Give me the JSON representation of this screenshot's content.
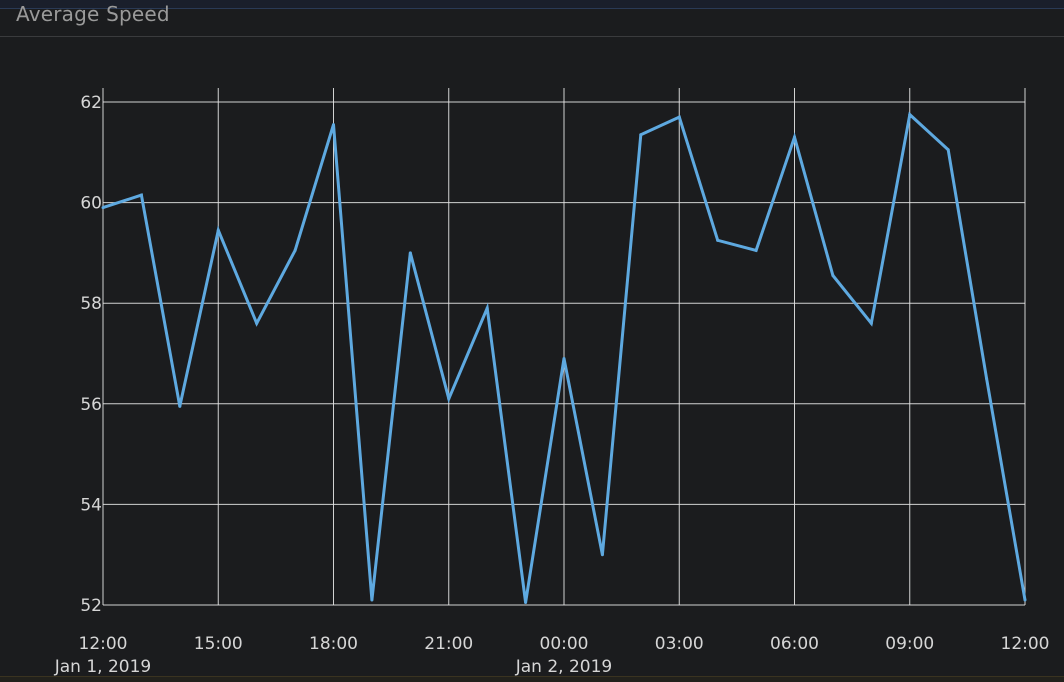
{
  "panel": {
    "title": "Average Speed"
  },
  "colors": {
    "background": "#1b1c1e",
    "grid": "#e6e6e6",
    "line": "#5ea9e0",
    "text": "#d6d6d6",
    "title": "#9a9a9a"
  },
  "chart_data": {
    "type": "line",
    "title": "",
    "xlabel": "",
    "ylabel": "",
    "grid": true,
    "legend": "none",
    "ylim": [
      52,
      62
    ],
    "xlim": [
      "2019-01-01 12:00",
      "2019-01-02 12:00"
    ],
    "y_ticks": [
      52,
      54,
      56,
      58,
      60,
      62
    ],
    "x_ticks": [
      {
        "at": "2019-01-01 12:00",
        "label": "12:00",
        "sublabel": "Jan 1, 2019"
      },
      {
        "at": "2019-01-01 15:00",
        "label": "15:00",
        "sublabel": ""
      },
      {
        "at": "2019-01-01 18:00",
        "label": "18:00",
        "sublabel": ""
      },
      {
        "at": "2019-01-01 21:00",
        "label": "21:00",
        "sublabel": ""
      },
      {
        "at": "2019-01-02 00:00",
        "label": "00:00",
        "sublabel": "Jan 2, 2019"
      },
      {
        "at": "2019-01-02 03:00",
        "label": "03:00",
        "sublabel": ""
      },
      {
        "at": "2019-01-02 06:00",
        "label": "06:00",
        "sublabel": ""
      },
      {
        "at": "2019-01-02 09:00",
        "label": "09:00",
        "sublabel": ""
      },
      {
        "at": "2019-01-02 12:00",
        "label": "12:00",
        "sublabel": ""
      }
    ],
    "series": [
      {
        "x": [
          "2019-01-01 12:00",
          "2019-01-01 13:00",
          "2019-01-01 14:00",
          "2019-01-01 15:00",
          "2019-01-01 16:00",
          "2019-01-01 17:00",
          "2019-01-01 18:00",
          "2019-01-01 19:00",
          "2019-01-01 20:00",
          "2019-01-01 21:00",
          "2019-01-01 22:00",
          "2019-01-01 23:00",
          "2019-01-02 00:00",
          "2019-01-02 01:00",
          "2019-01-02 02:00",
          "2019-01-02 03:00",
          "2019-01-02 04:00",
          "2019-01-02 05:00",
          "2019-01-02 06:00",
          "2019-01-02 07:00",
          "2019-01-02 08:00",
          "2019-01-02 09:00",
          "2019-01-02 10:00",
          "2019-01-02 11:00",
          "2019-01-02 12:00"
        ],
        "y": [
          59.9,
          60.15,
          55.95,
          59.45,
          57.6,
          59.05,
          61.55,
          52.1,
          59.0,
          56.1,
          57.9,
          52.05,
          56.9,
          53.0,
          61.35,
          61.7,
          59.25,
          59.05,
          61.3,
          58.55,
          57.6,
          61.75,
          61.05,
          56.5,
          52.1
        ]
      }
    ]
  }
}
